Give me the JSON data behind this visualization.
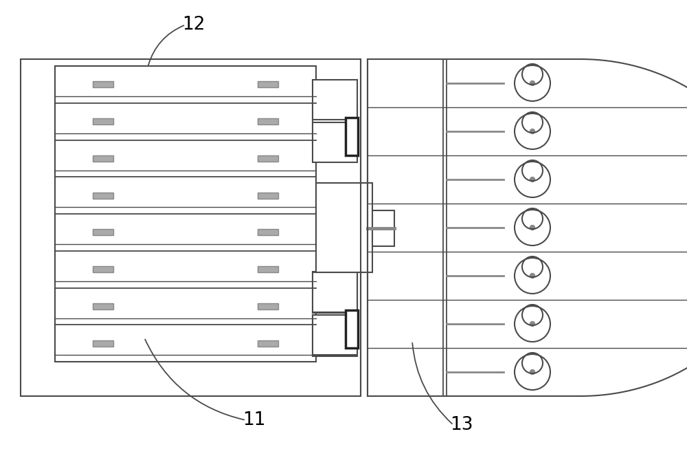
{
  "bg_color": "#ffffff",
  "line_color": "#4a4a4a",
  "gray_color": "#888888",
  "handle_color": "#aaaaaa",
  "fig_width": 10.0,
  "fig_height": 6.66,
  "label_11": "11",
  "label_12": "12",
  "label_13": "13"
}
